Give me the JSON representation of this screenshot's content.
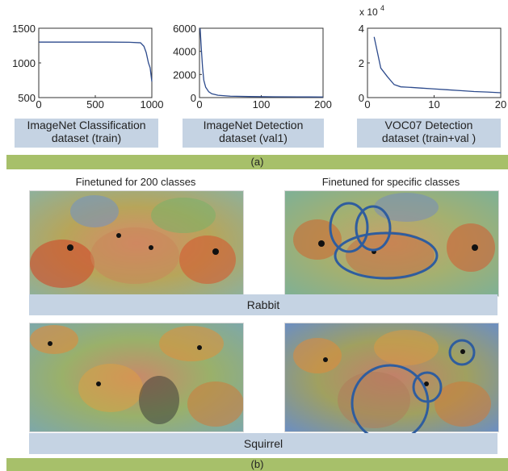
{
  "part_a": {
    "charts": [
      {
        "type": "line",
        "x": [
          1,
          200,
          400,
          600,
          800,
          900,
          930,
          950,
          970,
          985,
          1000
        ],
        "y": [
          1300,
          1300,
          1300,
          1300,
          1298,
          1290,
          1240,
          1150,
          1000,
          930,
          730
        ],
        "xlim": [
          0,
          1000
        ],
        "ylim": [
          500,
          1500
        ],
        "xticks": [
          "0",
          "500",
          "1000"
        ],
        "yticks": [
          "1500",
          "1000",
          "500"
        ],
        "caption": [
          "ImageNet Classification",
          "dataset (train)"
        ]
      },
      {
        "type": "line",
        "x": [
          1,
          3,
          5,
          7,
          10,
          15,
          20,
          30,
          50,
          80,
          120,
          160,
          200
        ],
        "y": [
          6000,
          4200,
          2600,
          1500,
          900,
          500,
          330,
          200,
          120,
          90,
          70,
          60,
          50
        ],
        "xlim": [
          0,
          200
        ],
        "ylim": [
          0,
          6000
        ],
        "xticks": [
          "0",
          "100",
          "200"
        ],
        "yticks": [
          "6000",
          "4000",
          "2000",
          "0"
        ],
        "caption": [
          "ImageNet Detection",
          "dataset (val1)"
        ]
      },
      {
        "type": "line",
        "x": [
          1,
          2,
          3,
          4,
          5,
          6,
          8,
          10,
          12,
          14,
          16,
          18,
          20
        ],
        "y": [
          3.5,
          1.7,
          1.2,
          0.75,
          0.62,
          0.6,
          0.55,
          0.5,
          0.45,
          0.4,
          0.35,
          0.32,
          0.28
        ],
        "xlim": [
          0,
          20
        ],
        "ylim": [
          0,
          4
        ],
        "xticks": [
          "0",
          "10",
          "20"
        ],
        "yticks": [
          "4",
          "2",
          "0"
        ],
        "exponent_label": "x 10",
        "exponent_power": "4",
        "caption": [
          "VOC07 Detection",
          "dataset (train+val )"
        ]
      }
    ],
    "label": "(a)"
  },
  "part_b": {
    "col_left_title": "Finetuned for 200 classes",
    "col_right_title": "Finetuned for specific classes",
    "rows": [
      {
        "label": "Rabbit"
      },
      {
        "label": "Squirrel"
      }
    ],
    "label": "(b)",
    "highlight_color": "#2f5d9e"
  }
}
